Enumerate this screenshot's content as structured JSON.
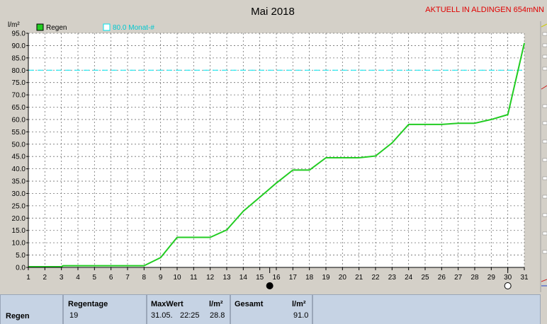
{
  "header": {
    "title": "Mai 2018",
    "station": "AKTUELL IN ALDINGEN 654mNN"
  },
  "legend": {
    "series_label": "Regen",
    "reference_label": "80.0 Monat-#"
  },
  "colors": {
    "series": "#22cc22",
    "reference": "#00e5ee",
    "station_text": "#e00000",
    "background": "#d4d0c8",
    "plot_area": "#ffffff"
  },
  "chart_data": {
    "type": "line",
    "title": "Mai 2018",
    "ylabel": "l/m²",
    "xlabel": "",
    "xlim": [
      1,
      31
    ],
    "ylim": [
      0,
      95
    ],
    "grid": true,
    "legend_position": "top-left",
    "x_ticks": [
      "1",
      "2",
      "3",
      "4",
      "5",
      "6",
      "7",
      "8",
      "9",
      "10",
      "11",
      "12",
      "13",
      "14",
      "15",
      "16",
      "17",
      "18",
      "19",
      "20",
      "21",
      "22",
      "23",
      "24",
      "25",
      "26",
      "27",
      "28",
      "29",
      "30",
      "31"
    ],
    "y_ticks": [
      "0.0",
      "5.0",
      "10.0",
      "15.0",
      "20.0",
      "25.0",
      "30.0",
      "35.0",
      "40.0",
      "45.0",
      "50.0",
      "55.0",
      "60.0",
      "65.0",
      "70.0",
      "75.0",
      "80.0",
      "85.0",
      "90.0",
      "95.0"
    ],
    "series": [
      {
        "name": "Regen",
        "x": [
          1,
          3,
          3.1,
          8,
          9,
          10,
          11,
          12,
          13,
          14,
          15,
          16,
          17,
          18,
          19,
          20,
          21,
          22,
          23,
          24,
          25,
          26,
          27,
          28,
          29,
          30,
          31
        ],
        "y": [
          0.3,
          0.3,
          0.7,
          0.7,
          4.0,
          12.2,
          12.2,
          12.2,
          15.2,
          22.8,
          28.5,
          34.2,
          39.5,
          39.5,
          44.5,
          44.5,
          44.5,
          45.2,
          50.5,
          58.0,
          58.0,
          58.0,
          58.5,
          58.5,
          60.0,
          62.0,
          91.0
        ]
      }
    ],
    "reference_line": {
      "name": "80.0 Monat-#",
      "y": 80.0
    },
    "markers": [
      {
        "x": 15.6,
        "style": "filled"
      },
      {
        "x": 30.0,
        "style": "open"
      }
    ]
  },
  "stats": {
    "row_label": "Regen",
    "regentage": {
      "label": "Regentage",
      "value": "19"
    },
    "maxwert": {
      "label": "MaxWert",
      "unit": "l/m²",
      "date": "31.05.",
      "time": "22:25",
      "value": "28.8"
    },
    "gesamt": {
      "label": "Gesamt",
      "unit": "l/m²",
      "value": "91.0"
    }
  }
}
